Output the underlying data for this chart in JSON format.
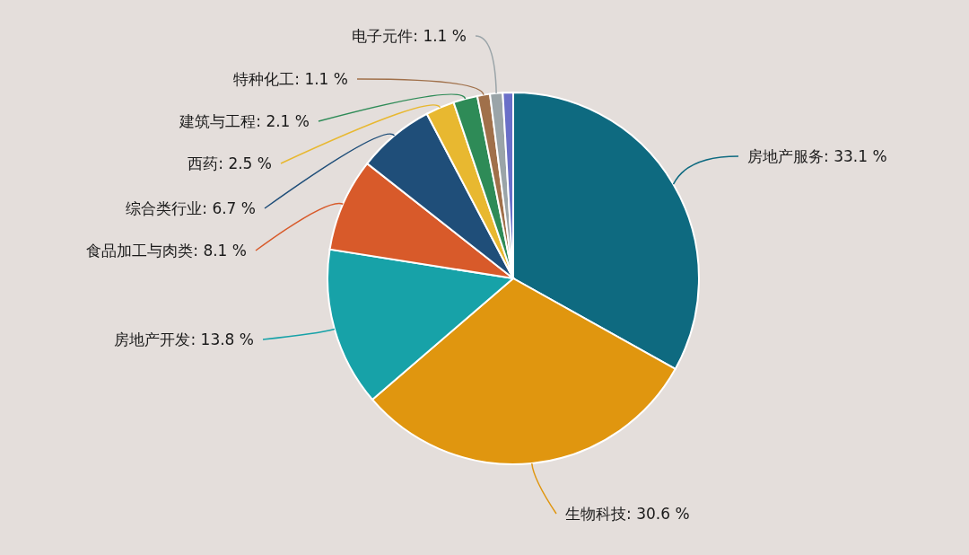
{
  "chart_data": {
    "type": "pie",
    "categories": [
      "房地产服务",
      "生物科技",
      "房地产开发",
      "食品加工与肉类",
      "综合类行业",
      "西药",
      "建筑与工程",
      "特种化工",
      "电子元件",
      null
    ],
    "values": [
      33.1,
      30.6,
      13.8,
      8.1,
      6.7,
      2.5,
      2.1,
      1.1,
      1.1,
      0.9
    ],
    "colors": [
      "#0e6a80",
      "#e0960f",
      "#17a2a8",
      "#d85a2a",
      "#1f4e79",
      "#e8b830",
      "#2e8b57",
      "#a0704a",
      "#9aa4a8",
      "#6a6fc8"
    ],
    "value_labels": [
      "33.1 %",
      "30.6 %",
      "13.8 %",
      "8.1 %",
      "6.7 %",
      "2.5 %",
      "2.1 %",
      "1.1 %",
      "1.1 %",
      null
    ],
    "legend": false
  }
}
